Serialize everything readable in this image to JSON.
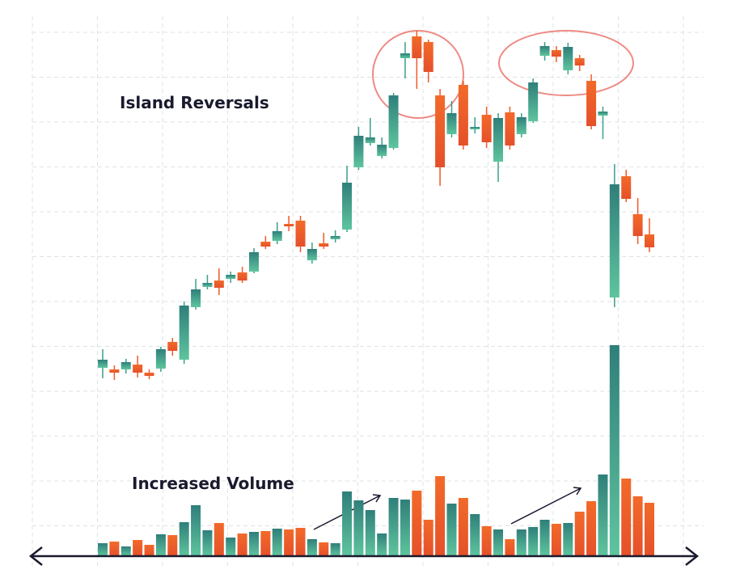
{
  "chart_data": {
    "type": "candlestick",
    "annotations": [
      "Island Reversals",
      "Increased Volume"
    ],
    "open": [
      233,
      231,
      231,
      237,
      227,
      232,
      265,
      243,
      308,
      333,
      341,
      343,
      351,
      352,
      389,
      390,
      411,
      415,
      366,
      387,
      392,
      404,
      481,
      511,
      495,
      505,
      616,
      643,
      636,
      570,
      522,
      583,
      528,
      546,
      488,
      549,
      522,
      538,
      619,
      626,
      601,
      616,
      588,
      545,
      320,
      470,
      423,
      398
    ],
    "high": [
      256,
      236,
      244,
      248,
      231,
      259,
      270,
      315,
      343,
      348,
      356,
      352,
      358,
      381,
      396,
      413,
      421,
      421,
      388,
      400,
      403,
      483,
      531,
      542,
      518,
      573,
      636,
      650,
      639,
      578,
      563,
      588,
      543,
      556,
      548,
      556,
      548,
      591,
      636,
      631,
      635,
      620,
      596,
      556,
      485,
      478,
      443,
      418
    ],
    "low": [
      220,
      218,
      226,
      221,
      219,
      228,
      248,
      238,
      305,
      330,
      323,
      338,
      338,
      350,
      380,
      386,
      402,
      376,
      362,
      380,
      388,
      401,
      478,
      508,
      492,
      503,
      591,
      578,
      586,
      458,
      518,
      503,
      523,
      505,
      463,
      503,
      518,
      536,
      613,
      611,
      596,
      600,
      528,
      516,
      308,
      438,
      386,
      376
    ],
    "close": [
      243,
      227,
      240,
      227,
      223,
      256,
      254,
      310,
      330,
      338,
      332,
      348,
      341,
      376,
      383,
      402,
      408,
      383,
      380,
      383,
      396,
      462,
      520,
      518,
      509,
      570,
      622,
      616,
      599,
      481,
      548,
      508,
      531,
      512,
      542,
      508,
      543,
      586,
      631,
      618,
      630,
      607,
      532,
      550,
      460,
      442,
      396,
      382
    ],
    "volume": [
      16,
      18,
      12,
      20,
      14,
      27,
      26,
      42,
      63,
      32,
      41,
      23,
      28,
      30,
      31,
      34,
      33,
      35,
      21,
      17,
      16,
      80,
      69,
      57,
      28,
      72,
      70,
      81,
      45,
      99,
      65,
      72,
      52,
      37,
      33,
      21,
      33,
      36,
      45,
      40,
      41,
      55,
      68,
      101,
      261,
      96,
      74,
      66
    ],
    "ylim": [
      0,
      678
    ],
    "up_color": "#3a9f8c",
    "down_color": "#f05a28",
    "grid": true
  }
}
